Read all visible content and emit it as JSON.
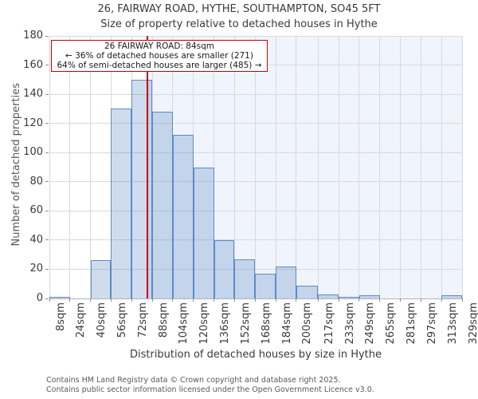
{
  "title": "26, FAIRWAY ROAD, HYTHE, SOUTHAMPTON, SO45 5FT",
  "subtitle": "Size of property relative to detached houses in Hythe",
  "annotation": {
    "line1": "26 FAIRWAY ROAD: 84sqm",
    "line2": "← 36% of detached houses are smaller (271)",
    "line3": "64% of semi-detached houses are larger (485) →"
  },
  "chart_data": {
    "type": "bar",
    "title": "Size of property relative to detached houses in Hythe",
    "xlabel": "Distribution of detached houses by size in Hythe",
    "ylabel": "Number of detached properties",
    "bin_edges": [
      8,
      24,
      40,
      56,
      72,
      88,
      104,
      120,
      136,
      152,
      168,
      184,
      200,
      217,
      233,
      249,
      265,
      281,
      297,
      313,
      329
    ],
    "x_tick_labels": [
      "8sqm",
      "24sqm",
      "40sqm",
      "56sqm",
      "72sqm",
      "88sqm",
      "104sqm",
      "120sqm",
      "136sqm",
      "152sqm",
      "168sqm",
      "184sqm",
      "200sqm",
      "217sqm",
      "233sqm",
      "249sqm",
      "265sqm",
      "281sqm",
      "297sqm",
      "313sqm",
      "329sqm"
    ],
    "values": [
      1,
      0,
      26,
      130,
      150,
      128,
      112,
      90,
      40,
      27,
      17,
      22,
      9,
      3,
      1,
      2,
      0,
      0,
      0,
      2
    ],
    "y_ticks": [
      0,
      20,
      40,
      60,
      80,
      100,
      120,
      140,
      160,
      180
    ],
    "ylim": [
      0,
      180
    ],
    "xlim": [
      8,
      329
    ],
    "grid": true,
    "legend": false,
    "marker_value_sqm": 84,
    "shaded_region": [
      84,
      329
    ]
  },
  "footer": {
    "line1": "Contains HM Land Registry data © Crown copyright and database right 2025.",
    "line2": "Contains public sector information licensed under the Open Government Licence v3.0."
  },
  "colors": {
    "marker_red": "#cc0000",
    "annotation_border": "#cc0000",
    "bar_fill": "rgba(79,129,189,0.28)",
    "bar_edge": "#5b8bc9",
    "shade_fill": "#f0f4fc",
    "grid_line": "#d9d9d9",
    "axis_line": "#b3b3b3",
    "text_dark": "#3a3a3a",
    "text_gray": "#595959"
  }
}
